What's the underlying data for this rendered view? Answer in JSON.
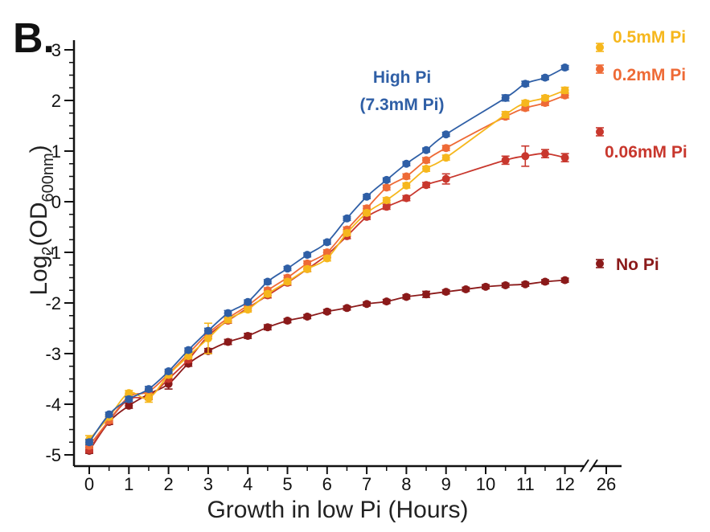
{
  "panel_label": "B.",
  "chart_data": {
    "type": "line",
    "title": "",
    "xlabel": "Growth in low Pi (Hours)",
    "ylabel": {
      "base": "Log",
      "sub1": "2",
      "open": "(OD",
      "sub2": "600nm",
      "close": ")"
    },
    "xlim": [
      0,
      12
    ],
    "ylim": [
      -5,
      3
    ],
    "x_ticks": [
      "0",
      "1",
      "2",
      "3",
      "4",
      "5",
      "6",
      "7",
      "8",
      "9",
      "10",
      "11",
      "12"
    ],
    "x_break_tick": "26",
    "y_ticks": [
      "-5",
      "-4",
      "-3",
      "-2",
      "-1",
      "0",
      "1",
      "2",
      "3"
    ],
    "grid": false,
    "series": [
      {
        "name": "High Pi (7.3mM Pi)",
        "label_line1": "High Pi",
        "label_line2": "(7.3mM Pi)",
        "color": "#2f5fa6",
        "x": [
          0,
          0.5,
          1,
          1.5,
          2,
          2.5,
          3,
          3.5,
          4,
          4.5,
          5,
          5.5,
          6,
          6.5,
          7,
          7.5,
          8,
          8.5,
          9,
          10.5,
          11,
          11.5,
          12
        ],
        "y": [
          -4.75,
          -4.2,
          -3.9,
          -3.7,
          -3.35,
          -2.93,
          -2.55,
          -2.2,
          -1.98,
          -1.58,
          -1.32,
          -1.05,
          -0.8,
          -0.33,
          0.1,
          0.43,
          0.75,
          1.02,
          1.33,
          2.05,
          2.33,
          2.45,
          2.65
        ],
        "err": [
          0.05,
          0.04,
          0.05,
          0.05,
          0.04,
          0.04,
          0.05,
          0.05,
          0.04,
          0.04,
          0.04,
          0.04,
          0.04,
          0.04,
          0.04,
          0.04,
          0.04,
          0.04,
          0.04,
          0.06,
          0.05,
          0.04,
          0.04
        ]
      },
      {
        "name": "0.5mM Pi",
        "color": "#f6b71d",
        "x": [
          0,
          0.5,
          1,
          1.5,
          2,
          2.5,
          3,
          3.5,
          4,
          4.5,
          5,
          5.5,
          6,
          6.5,
          7,
          7.5,
          8,
          8.5,
          9,
          10.5,
          11,
          11.5,
          12
        ],
        "y": [
          -4.7,
          -4.25,
          -3.78,
          -3.88,
          -3.42,
          -3.05,
          -2.7,
          -2.33,
          -2.13,
          -1.82,
          -1.58,
          -1.33,
          -1.12,
          -0.62,
          -0.22,
          0.03,
          0.32,
          0.65,
          0.87,
          1.72,
          1.95,
          2.05,
          2.2
        ],
        "err": [
          0.08,
          0.05,
          0.05,
          0.08,
          0.05,
          0.05,
          0.3,
          0.06,
          0.05,
          0.05,
          0.05,
          0.05,
          0.05,
          0.05,
          0.05,
          0.05,
          0.05,
          0.05,
          0.05,
          0.06,
          0.05,
          0.05,
          0.06
        ]
      },
      {
        "name": "0.2mM Pi",
        "color": "#ee6a36",
        "x": [
          0,
          0.5,
          1,
          1.5,
          2,
          2.5,
          3,
          3.5,
          4,
          4.5,
          5,
          5.5,
          6,
          6.5,
          7,
          7.5,
          8,
          8.5,
          9,
          10.5,
          11,
          11.5,
          12
        ],
        "y": [
          -4.82,
          -4.32,
          -3.85,
          -3.75,
          -3.4,
          -3.0,
          -2.6,
          -2.3,
          -2.05,
          -1.75,
          -1.5,
          -1.22,
          -1.0,
          -0.55,
          -0.13,
          0.28,
          0.5,
          0.82,
          1.06,
          1.68,
          1.85,
          1.95,
          2.1
        ],
        "err": [
          0.05,
          0.05,
          0.05,
          0.05,
          0.05,
          0.05,
          0.05,
          0.05,
          0.05,
          0.05,
          0.05,
          0.05,
          0.05,
          0.05,
          0.05,
          0.05,
          0.05,
          0.05,
          0.05,
          0.05,
          0.05,
          0.05,
          0.05
        ]
      },
      {
        "name": "0.06mM Pi",
        "color": "#c8372d",
        "x": [
          0,
          0.5,
          1,
          1.5,
          2,
          2.5,
          3,
          3.5,
          4,
          4.5,
          5,
          5.5,
          6,
          6.5,
          7,
          7.5,
          8,
          8.5,
          9,
          10.5,
          11,
          11.5,
          12
        ],
        "y": [
          -4.9,
          -4.33,
          -3.9,
          -3.85,
          -3.5,
          -3.12,
          -2.65,
          -2.35,
          -2.1,
          -1.85,
          -1.6,
          -1.33,
          -1.05,
          -0.68,
          -0.3,
          -0.1,
          0.07,
          0.33,
          0.45,
          0.82,
          0.9,
          0.95,
          0.87
        ],
        "err": [
          0.05,
          0.05,
          0.05,
          0.06,
          0.05,
          0.05,
          0.05,
          0.05,
          0.05,
          0.05,
          0.05,
          0.05,
          0.05,
          0.05,
          0.05,
          0.05,
          0.05,
          0.05,
          0.1,
          0.08,
          0.2,
          0.08,
          0.08
        ]
      },
      {
        "name": "No Pi",
        "color": "#8b1a1a",
        "x": [
          0,
          0.5,
          1,
          1.5,
          2,
          2.5,
          3,
          3.5,
          4,
          4.5,
          5,
          5.5,
          6,
          6.5,
          7,
          7.5,
          8,
          8.5,
          9,
          9.5,
          10,
          10.5,
          11,
          11.5,
          12
        ],
        "y": [
          -4.92,
          -4.35,
          -4.03,
          -3.8,
          -3.6,
          -3.2,
          -2.95,
          -2.77,
          -2.65,
          -2.48,
          -2.35,
          -2.27,
          -2.17,
          -2.1,
          -2.02,
          -1.97,
          -1.88,
          -1.83,
          -1.78,
          -1.73,
          -1.68,
          -1.65,
          -1.63,
          -1.58,
          -1.55
        ],
        "err": [
          0.05,
          0.05,
          0.05,
          0.08,
          0.1,
          0.05,
          0.05,
          0.05,
          0.05,
          0.05,
          0.04,
          0.04,
          0.04,
          0.04,
          0.04,
          0.04,
          0.04,
          0.06,
          0.04,
          0.04,
          0.04,
          0.04,
          0.04,
          0.04,
          0.04
        ]
      }
    ]
  }
}
